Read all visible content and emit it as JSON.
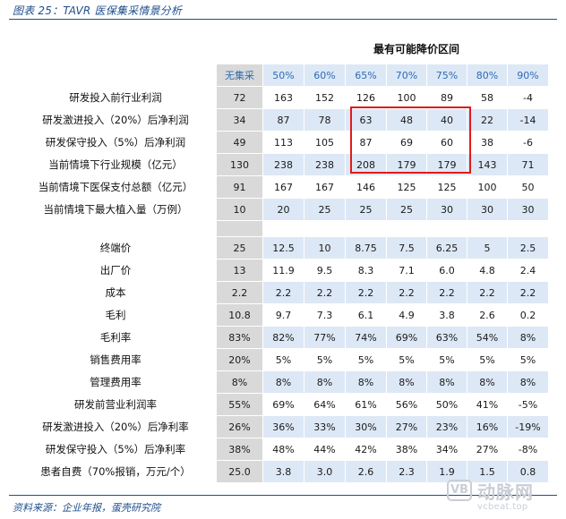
{
  "figure_title": "图表 25：TAVR 医保集采情景分析",
  "interval_title": "最有可能降价区间",
  "columns": [
    "无集采",
    "50%",
    "60%",
    "65%",
    "70%",
    "75%",
    "80%",
    "90%"
  ],
  "group1": [
    {
      "label": "研发投入前行业利润",
      "values": [
        "72",
        "163",
        "152",
        "126",
        "100",
        "89",
        "58",
        "-4"
      ]
    },
    {
      "label": "研发激进投入（20%）后净利润",
      "values": [
        "34",
        "87",
        "78",
        "63",
        "48",
        "40",
        "22",
        "-14"
      ]
    },
    {
      "label": "研发保守投入（5%）后净利润",
      "values": [
        "49",
        "113",
        "105",
        "87",
        "69",
        "60",
        "38",
        "-6"
      ]
    },
    {
      "label": "当前情境下行业规模（亿元）",
      "values": [
        "130",
        "238",
        "238",
        "208",
        "179",
        "179",
        "143",
        "71"
      ]
    },
    {
      "label": "当前情境下医保支付总额（亿元）",
      "values": [
        "91",
        "167",
        "167",
        "146",
        "125",
        "125",
        "100",
        "50"
      ]
    },
    {
      "label": "当前情境下最大植入量（万例）",
      "values": [
        "10",
        "20",
        "25",
        "25",
        "25",
        "30",
        "30",
        "30"
      ]
    }
  ],
  "group2": [
    {
      "label": "终端价",
      "values": [
        "25",
        "12.5",
        "10",
        "8.75",
        "7.5",
        "6.25",
        "5",
        "2.5"
      ]
    },
    {
      "label": "出厂价",
      "values": [
        "13",
        "11.9",
        "9.5",
        "8.3",
        "7.1",
        "6.0",
        "4.8",
        "2.4"
      ]
    },
    {
      "label": "成本",
      "values": [
        "2.2",
        "2.2",
        "2.2",
        "2.2",
        "2.2",
        "2.2",
        "2.2",
        "2.2"
      ]
    },
    {
      "label": "毛利",
      "values": [
        "10.8",
        "9.7",
        "7.3",
        "6.1",
        "4.9",
        "3.8",
        "2.6",
        "0.2"
      ]
    },
    {
      "label": "毛利率",
      "values": [
        "83%",
        "82%",
        "77%",
        "74%",
        "69%",
        "63%",
        "54%",
        "8%"
      ]
    },
    {
      "label": "销售费用率",
      "values": [
        "20%",
        "5%",
        "5%",
        "5%",
        "5%",
        "5%",
        "5%",
        "5%"
      ]
    },
    {
      "label": "管理费用率",
      "values": [
        "8%",
        "8%",
        "8%",
        "8%",
        "8%",
        "8%",
        "8%",
        "8%"
      ]
    },
    {
      "label": "研发前营业利润率",
      "values": [
        "55%",
        "69%",
        "64%",
        "61%",
        "56%",
        "50%",
        "41%",
        "-5%"
      ]
    },
    {
      "label": "研发激进投入（20%）后净利率",
      "values": [
        "26%",
        "36%",
        "33%",
        "30%",
        "27%",
        "23%",
        "16%",
        "-19%"
      ]
    },
    {
      "label": "研发保守投入（5%）后净利率",
      "values": [
        "38%",
        "48%",
        "44%",
        "42%",
        "38%",
        "34%",
        "27%",
        "-8%"
      ]
    },
    {
      "label": "患者自费（70%报销，万元/个）",
      "values": [
        "25.0",
        "3.8",
        "3.0",
        "2.6",
        "2.3",
        "1.9",
        "1.5",
        "0.8"
      ]
    }
  ],
  "source": "资料来源：企业年报，蛋壳研究院",
  "watermark": {
    "logo_text": "VB",
    "name": "动脉网",
    "url": "vcbeat.top"
  },
  "colors": {
    "header_text": "#2e6bb5",
    "band_blue": "#dde8f6",
    "base_gray": "#d9d9d9",
    "highlight_red": "#e01b1b",
    "rule_blue": "#1f4e8c"
  }
}
